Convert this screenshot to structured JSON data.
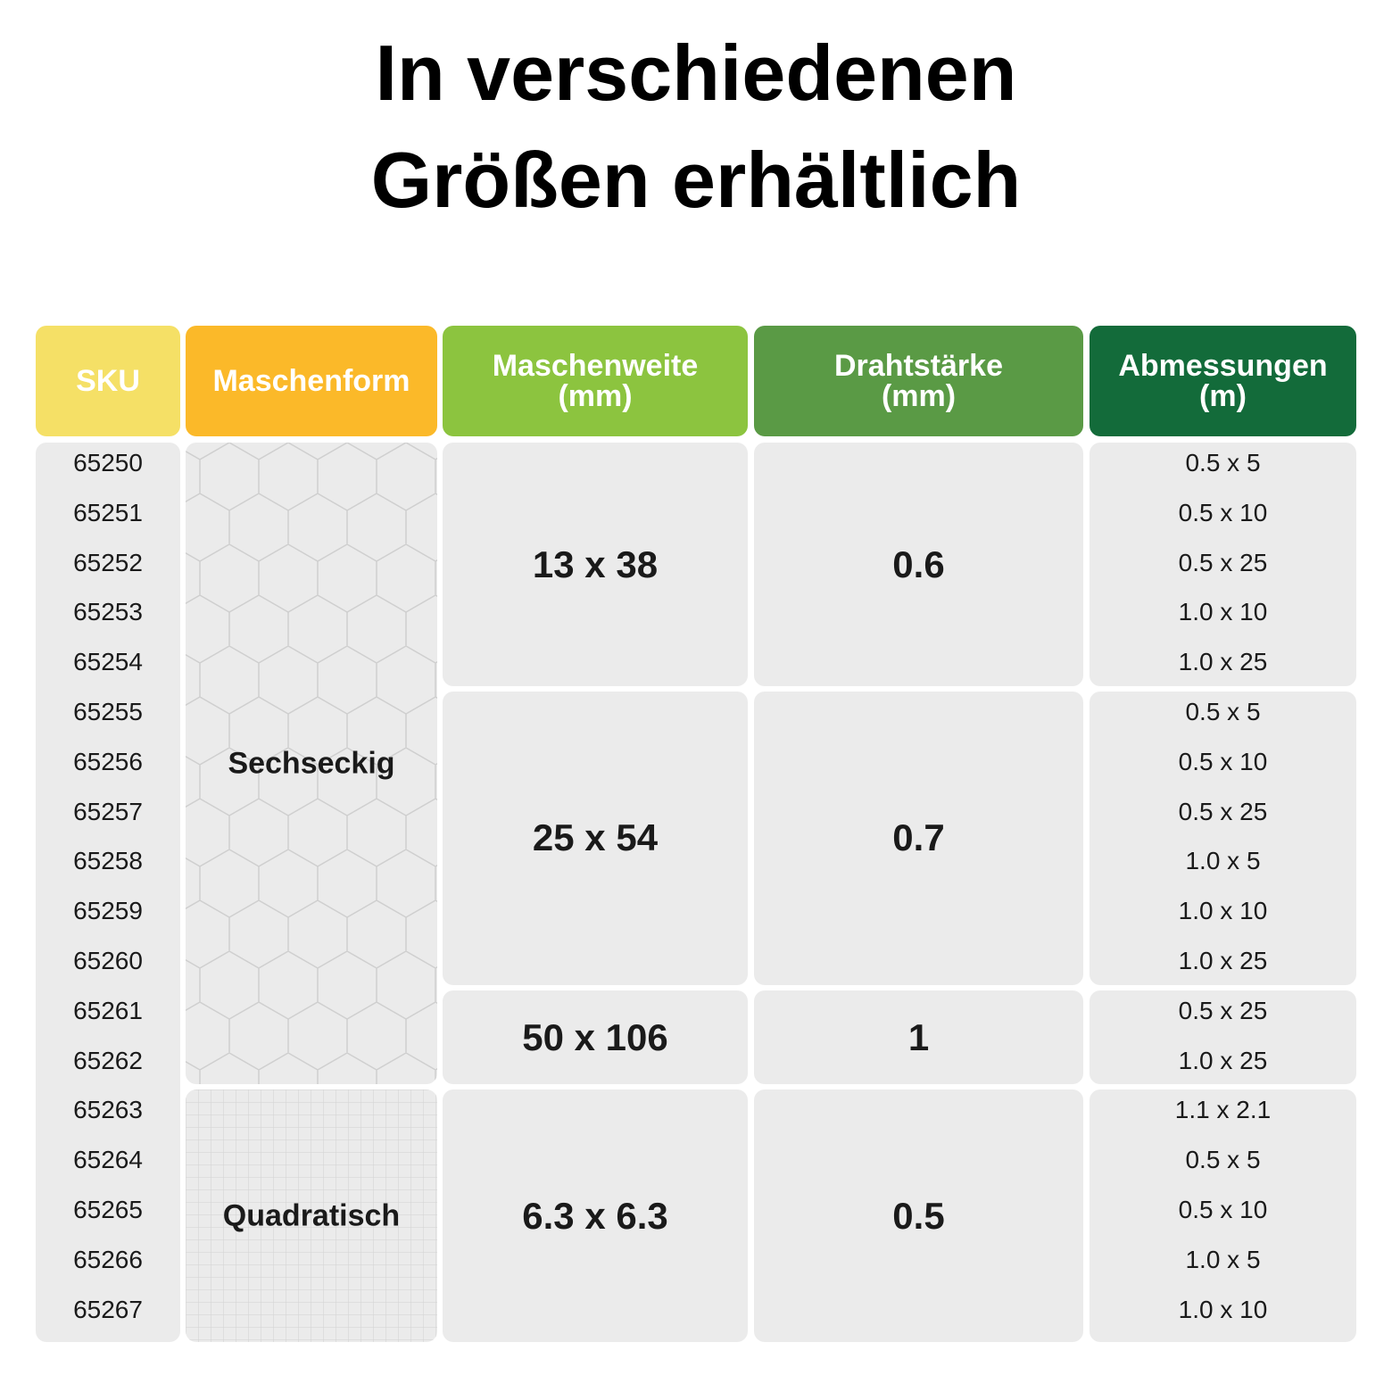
{
  "title": [
    "In verschiedenen",
    "Größen erhältlich"
  ],
  "table": {
    "headers": [
      [
        "SKU"
      ],
      [
        "Maschenform"
      ],
      [
        "Maschenweite",
        "(mm)"
      ],
      [
        "Drahtstärke",
        "(mm)"
      ],
      [
        "Abmessungen",
        "(m)"
      ]
    ],
    "groups": [
      {
        "shape": "Sechseckig",
        "meshes": [
          {
            "width": "13 x 38",
            "wire": "0.6",
            "items": [
              {
                "sku": "65250",
                "size": "0.5 x 5"
              },
              {
                "sku": "65251",
                "size": "0.5 x 10"
              },
              {
                "sku": "65252",
                "size": "0.5 x 25"
              },
              {
                "sku": "65253",
                "size": "1.0 x 10"
              },
              {
                "sku": "65254",
                "size": "1.0 x 25"
              }
            ]
          },
          {
            "width": "25 x 54",
            "wire": "0.7",
            "items": [
              {
                "sku": "65255",
                "size": "0.5 x 5"
              },
              {
                "sku": "65256",
                "size": "0.5 x 10"
              },
              {
                "sku": "65257",
                "size": "0.5 x 25"
              },
              {
                "sku": "65258",
                "size": "1.0 x 5"
              },
              {
                "sku": "65259",
                "size": "1.0 x 10"
              },
              {
                "sku": "65260",
                "size": "1.0 x 25"
              }
            ]
          },
          {
            "width": "50 x 106",
            "wire": "1",
            "items": [
              {
                "sku": "65261",
                "size": "0.5 x 25"
              },
              {
                "sku": "65262",
                "size": "1.0 x 25"
              }
            ]
          }
        ]
      },
      {
        "shape": "Quadratisch",
        "meshes": [
          {
            "width": "6.3 x 6.3",
            "wire": "0.5",
            "items": [
              {
                "sku": "65263",
                "size": "1.1 x 2.1"
              },
              {
                "sku": "65264",
                "size": "0.5 x 5"
              },
              {
                "sku": "65265",
                "size": "0.5 x 10"
              },
              {
                "sku": "65266",
                "size": "1.0 x 5"
              },
              {
                "sku": "65267",
                "size": "1.0 x 10"
              }
            ]
          }
        ]
      }
    ]
  }
}
